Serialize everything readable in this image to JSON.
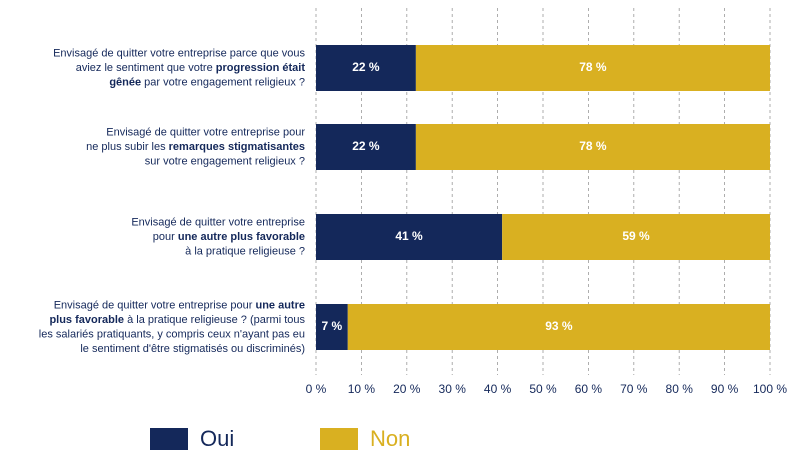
{
  "chart_data": {
    "type": "stacked-bar-horizontal",
    "categories": [
      [
        [
          {
            "text": "Envisagé de quitter votre entreprise parce que vous",
            "bold": false
          }
        ],
        [
          {
            "text": "aviez le sentiment que votre ",
            "bold": false
          },
          {
            "text": "progression était",
            "bold": true
          }
        ],
        [
          {
            "text": "gênée",
            "bold": true
          },
          {
            "text": " par votre engagement religieux ?",
            "bold": false
          }
        ]
      ],
      [
        [
          {
            "text": "Envisagé de quitter votre entreprise pour",
            "bold": false
          }
        ],
        [
          {
            "text": "ne plus subir les ",
            "bold": false
          },
          {
            "text": "remarques stigmatisantes",
            "bold": true
          }
        ],
        [
          {
            "text": "sur votre engagement religieux ?",
            "bold": false
          }
        ]
      ],
      [
        [
          {
            "text": "Envisagé de quitter votre entreprise",
            "bold": false
          }
        ],
        [
          {
            "text": "pour ",
            "bold": false
          },
          {
            "text": "une autre plus favorable",
            "bold": true
          }
        ],
        [
          {
            "text": "à la pratique religieuse ?",
            "bold": false
          }
        ]
      ],
      [
        [
          {
            "text": "Envisagé de quitter votre entreprise pour ",
            "bold": false
          },
          {
            "text": "une autre",
            "bold": true
          }
        ],
        [
          {
            "text": "plus favorable",
            "bold": true
          },
          {
            "text": " à la pratique religieuse ? (parmi tous",
            "bold": false
          }
        ],
        [
          {
            "text": "les salariés pratiquants, y compris ceux n'ayant pas eu",
            "bold": false
          }
        ],
        [
          {
            "text": "le sentiment d'être stigmatisés ou discriminés)",
            "bold": false
          }
        ]
      ]
    ],
    "series": [
      {
        "name": "Oui",
        "color": "#14285a",
        "values": [
          22,
          22,
          41,
          7
        ],
        "value_labels": [
          "22 %",
          "22 %",
          "41 %",
          "7 %"
        ]
      },
      {
        "name": "Non",
        "color": "#d9b021",
        "values": [
          78,
          78,
          59,
          93
        ],
        "value_labels": [
          "78 %",
          "78 %",
          "59 %",
          "93 %"
        ]
      }
    ],
    "xlim": [
      0,
      100
    ],
    "xticks": [
      {
        "value": 0,
        "label": "0 %"
      },
      {
        "value": 10,
        "label": "10 %"
      },
      {
        "value": 20,
        "label": "20 %"
      },
      {
        "value": 30,
        "label": "30 %"
      },
      {
        "value": 40,
        "label": "40 %"
      },
      {
        "value": 50,
        "label": "50 %"
      },
      {
        "value": 60,
        "label": "60 %"
      },
      {
        "value": 70,
        "label": "70 %"
      },
      {
        "value": 80,
        "label": "80 %"
      },
      {
        "value": 90,
        "label": "90 %"
      },
      {
        "value": 100,
        "label": "100 %"
      }
    ],
    "grid": true
  }
}
